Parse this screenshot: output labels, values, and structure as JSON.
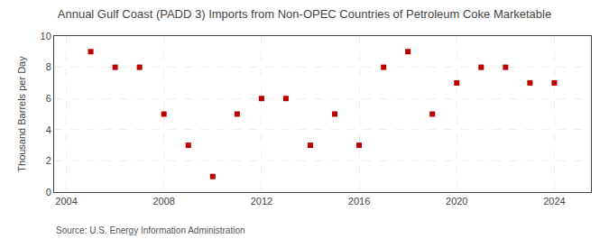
{
  "chart_data": {
    "type": "scatter",
    "title": "Annual Gulf Coast (PADD 3) Imports from Non-OPEC Countries of Petroleum Coke Marketable",
    "ylabel": "Thousand Barrels per Day",
    "source": "Source: U.S. Energy Information Administration",
    "x": [
      2005,
      2006,
      2007,
      2008,
      2009,
      2010,
      2011,
      2012,
      2013,
      2014,
      2015,
      2016,
      2017,
      2018,
      2019,
      2020,
      2021,
      2022,
      2023,
      2024
    ],
    "values": [
      9,
      8,
      8,
      5,
      3,
      1,
      5,
      6,
      6,
      3,
      5,
      3,
      8,
      9,
      5,
      7,
      8,
      8,
      7,
      7
    ],
    "color": "#bb0000",
    "marker": "square",
    "xlim": [
      2003.5,
      2025.5
    ],
    "ylim": [
      0,
      10
    ],
    "xticks": [
      2004,
      2008,
      2012,
      2016,
      2020,
      2024
    ],
    "yticks": [
      0,
      2,
      4,
      6,
      8,
      10
    ],
    "grid": true
  }
}
